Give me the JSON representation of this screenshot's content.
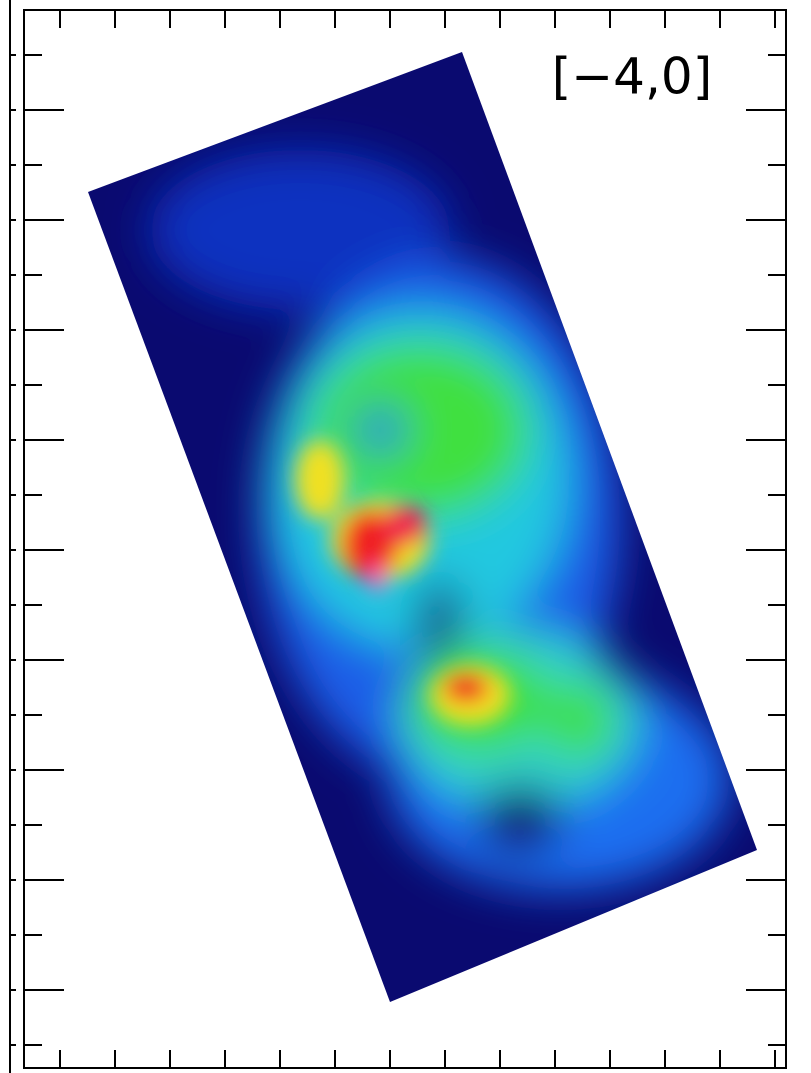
{
  "label": "[−4,0]"
}
